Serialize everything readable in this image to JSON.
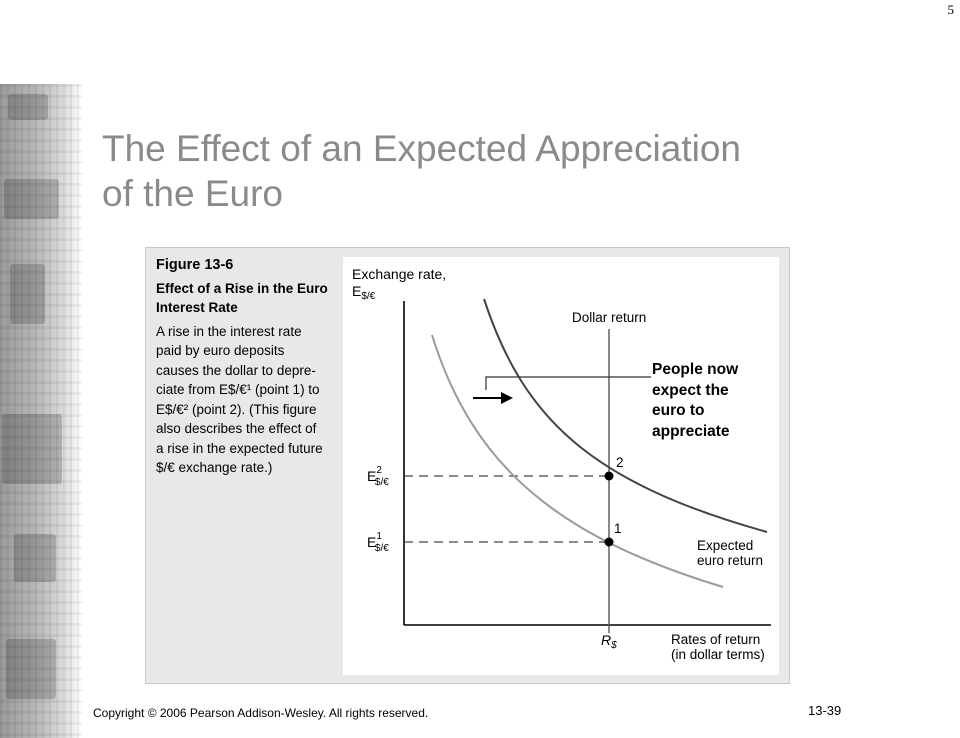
{
  "page_number": "5",
  "slide": {
    "title_line1": "The Effect of an Expected Appreciation",
    "title_line2": "of the Euro"
  },
  "figure": {
    "number": "Figure 13-6",
    "title": "Effect of a Rise in the Euro Interest Rate",
    "body": "A rise in the interest rate\npaid by euro deposits\ncauses the dollar to depre-\nciate from E$/€¹ (point 1) to\nE$/€² (point 2). (This figure\nalso describes the effect of\na rise in the expected future\n$/€ exchange rate.)"
  },
  "diagram": {
    "y_axis_label": "Exchange rate,",
    "y_axis_symbol": "E",
    "y_axis_subscript": "$/€",
    "x_axis_label_line1": "Rates of return",
    "x_axis_label_line2": "(in dollar terms)",
    "dollar_return_label": "Dollar return",
    "expected_euro_return_line1": "Expected",
    "expected_euro_return_line2": "euro return",
    "r_symbol": "R",
    "r_subscript": "$",
    "e2_symbol": "E",
    "e2_superscript": "2",
    "e2_subscript": "$/€",
    "e1_symbol": "E",
    "e1_superscript": "1",
    "e1_subscript": "$/€",
    "point1_label": "1",
    "point2_label": "2"
  },
  "callout": "People now\nexpect the\neuro to\nappreciate",
  "footer": {
    "copyright": "Copyright © 2006 Pearson Addison-Wesley. All rights reserved.",
    "slide_number": "13-39"
  }
}
